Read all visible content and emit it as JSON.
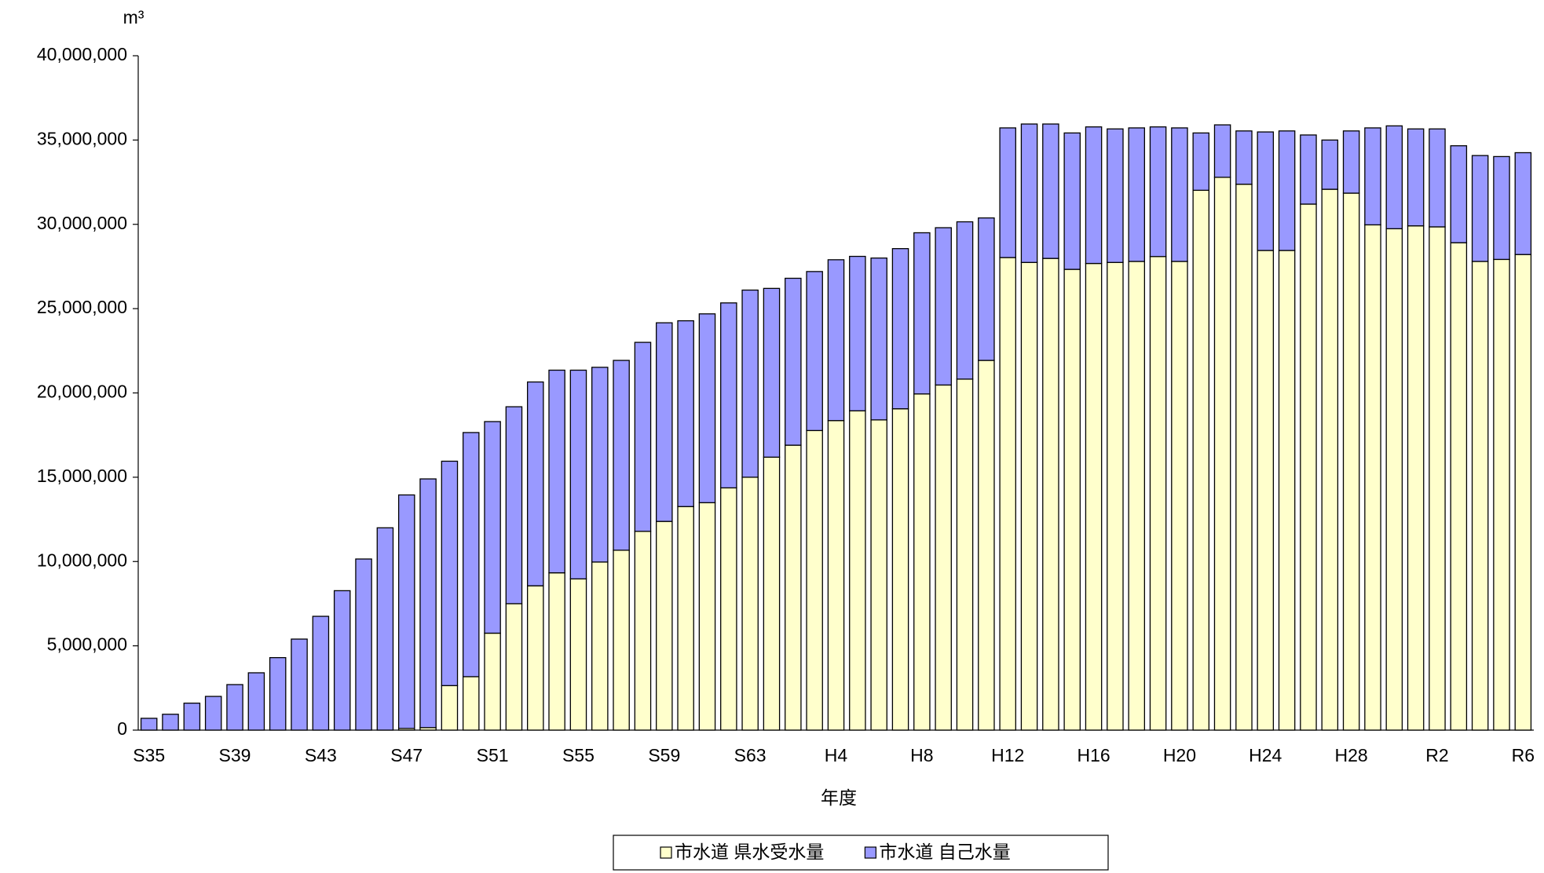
{
  "chart_data": {
    "type": "stacked_bar",
    "y_unit": "m³",
    "x_label": "年度",
    "categories": [
      "S35",
      null,
      null,
      null,
      "S39",
      null,
      null,
      null,
      "S43",
      null,
      null,
      null,
      "S47",
      null,
      null,
      null,
      "S51",
      null,
      null,
      null,
      "S55",
      null,
      null,
      null,
      "S59",
      null,
      null,
      null,
      "S63",
      null,
      null,
      null,
      "H4",
      null,
      null,
      null,
      "H8",
      null,
      null,
      null,
      "H12",
      null,
      null,
      null,
      "H16",
      null,
      null,
      null,
      "H20",
      null,
      null,
      null,
      "H24",
      null,
      null,
      null,
      "H28",
      null,
      null,
      null,
      "R2",
      null,
      null,
      null,
      "R6"
    ],
    "series": [
      {
        "name": "市水道 県水受水量",
        "color": "#ffffcc",
        "values": [
          0,
          0,
          0,
          0,
          0,
          0,
          0,
          0,
          0,
          0,
          0,
          0,
          100000,
          150000,
          2640000,
          3170000,
          5750000,
          7500000,
          8560000,
          9330000,
          8970000,
          9970000,
          10670000,
          11790000,
          12380000,
          13260000,
          13490000,
          14370000,
          15000000,
          16190000,
          16900000,
          17770000,
          18360000,
          18940000,
          18400000,
          19060000,
          19940000,
          20470000,
          20820000,
          21930000,
          28030000,
          27740000,
          27980000,
          27330000,
          27680000,
          27740000,
          27800000,
          28090000,
          27800000,
          32020000,
          32790000,
          32380000,
          28450000,
          28450000,
          31200000,
          32080000,
          31850000,
          29970000,
          29740000,
          29910000,
          29850000,
          28910000,
          27800000,
          27920000,
          28210000
        ]
      },
      {
        "name": "市水道 自己水量",
        "color": "#9999ff",
        "values": [
          700000,
          940000,
          1600000,
          2000000,
          2700000,
          3400000,
          4300000,
          5400000,
          6750000,
          8270000,
          10150000,
          12000000,
          13850000,
          14750000,
          13310000,
          14480000,
          12550000,
          11680000,
          12090000,
          12020000,
          12380000,
          11550000,
          11260000,
          11210000,
          11780000,
          11020000,
          11200000,
          10970000,
          11100000,
          10010000,
          9900000,
          9430000,
          9540000,
          9160000,
          9600000,
          9500000,
          9560000,
          9330000,
          9330000,
          8450000,
          7690000,
          8210000,
          7970000,
          8090000,
          8100000,
          7920000,
          7920000,
          7690000,
          7920000,
          3400000,
          3110000,
          3160000,
          7030000,
          7090000,
          4100000,
          2920000,
          3690000,
          5750000,
          6100000,
          5750000,
          5810000,
          5750000,
          6280000,
          6100000,
          6040000
        ]
      }
    ],
    "ylim": [
      0,
      40000000
    ],
    "yticks": [
      0,
      {
        "value": 5000000,
        "label": "5,000,000"
      },
      {
        "value": 10000000,
        "label": "10,000,000"
      },
      {
        "value": 15000000,
        "label": "15,000,000"
      },
      {
        "value": 20000000,
        "label": "20,000,000"
      },
      {
        "value": 25000000,
        "label": "25,000,000"
      },
      {
        "value": 30000000,
        "label": "30,000,000"
      },
      {
        "value": 35000000,
        "label": "35,000,000"
      },
      {
        "value": 40000000,
        "label": "40,000,000"
      }
    ],
    "grid": false,
    "legend": "bottom"
  }
}
